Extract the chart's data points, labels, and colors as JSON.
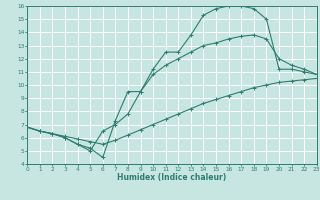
{
  "xlabel": "Humidex (Indice chaleur)",
  "xlim": [
    0,
    23
  ],
  "ylim": [
    4,
    16
  ],
  "xticks": [
    0,
    1,
    2,
    3,
    4,
    5,
    6,
    7,
    8,
    9,
    10,
    11,
    12,
    13,
    14,
    15,
    16,
    17,
    18,
    19,
    20,
    21,
    22,
    23
  ],
  "yticks": [
    4,
    5,
    6,
    7,
    8,
    9,
    10,
    11,
    12,
    13,
    14,
    15,
    16
  ],
  "bg_color": "#c8e6e1",
  "grid_color": "#ffffff",
  "line_color": "#2e7d72",
  "line1_x": [
    0,
    1,
    2,
    3,
    4,
    5,
    6,
    7,
    8,
    9,
    10,
    11,
    12,
    13,
    14,
    15,
    16,
    17,
    18,
    19,
    20,
    21,
    22,
    23
  ],
  "line1_y": [
    6.8,
    6.5,
    6.3,
    6.1,
    5.9,
    5.7,
    5.5,
    5.8,
    6.2,
    6.6,
    7.0,
    7.4,
    7.8,
    8.2,
    8.6,
    8.9,
    9.2,
    9.5,
    9.8,
    10.0,
    10.2,
    10.3,
    10.4,
    10.5
  ],
  "line2_x": [
    0,
    1,
    2,
    3,
    4,
    5,
    6,
    7,
    8,
    9,
    10,
    11,
    12,
    13,
    14,
    15,
    16,
    17,
    18,
    19,
    20,
    21,
    22,
    23
  ],
  "line2_y": [
    6.8,
    6.5,
    6.3,
    6.0,
    5.5,
    5.2,
    4.5,
    7.3,
    9.5,
    9.5,
    11.2,
    12.5,
    12.5,
    13.8,
    15.3,
    15.8,
    16.0,
    16.0,
    15.8,
    15.0,
    11.2,
    11.2,
    11.0,
    10.8
  ],
  "line3_x": [
    0,
    1,
    2,
    3,
    4,
    5,
    6,
    7,
    8,
    9,
    10,
    11,
    12,
    13,
    14,
    15,
    16,
    17,
    18,
    19,
    20,
    21,
    22,
    23
  ],
  "line3_y": [
    6.8,
    6.5,
    6.3,
    6.0,
    5.5,
    5.0,
    6.5,
    7.0,
    7.8,
    9.5,
    10.8,
    11.5,
    12.0,
    12.5,
    13.0,
    13.2,
    13.5,
    13.7,
    13.8,
    13.5,
    12.0,
    11.5,
    11.2,
    10.8
  ]
}
